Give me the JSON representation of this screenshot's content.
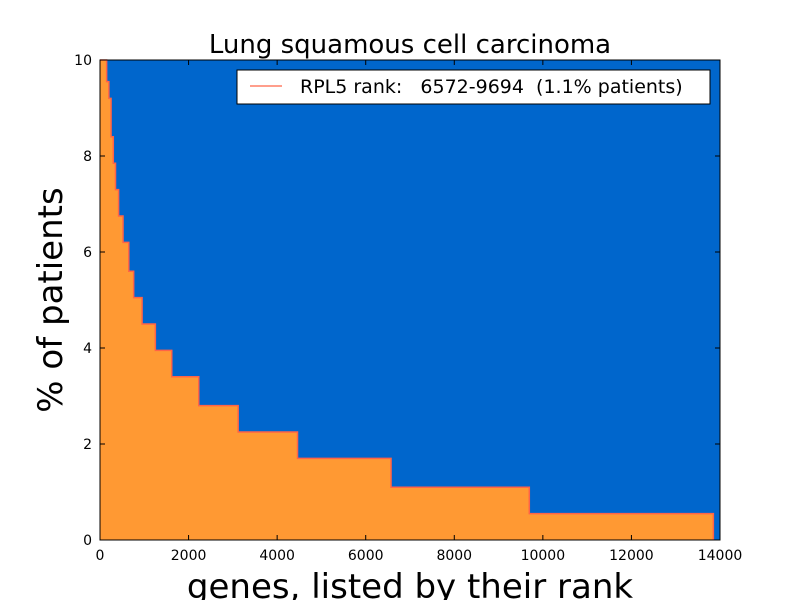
{
  "chart_data": {
    "type": "area",
    "title": "Lung squamous cell carcinoma",
    "xlabel": "genes, listed by their rank",
    "ylabel": "% of patients",
    "xlim": [
      0,
      14000
    ],
    "ylim": [
      0,
      10
    ],
    "x_ticks": [
      0,
      2000,
      4000,
      6000,
      8000,
      10000,
      12000,
      14000
    ],
    "y_ticks": [
      0,
      2,
      4,
      6,
      8,
      10
    ],
    "grid": false,
    "legend": {
      "label": "RPL5 rank:   6572-9694  (1.1% patients)",
      "placement": "top-right",
      "line_color": "#ff6347"
    },
    "colors": {
      "background": "#0066cc",
      "fill": "#ff9933",
      "outline": "#ff6347"
    },
    "series": [
      {
        "steps": [
          {
            "x0": 0,
            "x1": 150,
            "y": 10.0
          },
          {
            "x0": 150,
            "x1": 200,
            "y": 9.55
          },
          {
            "x0": 200,
            "x1": 250,
            "y": 9.2
          },
          {
            "x0": 250,
            "x1": 300,
            "y": 8.4
          },
          {
            "x0": 300,
            "x1": 350,
            "y": 7.85
          },
          {
            "x0": 350,
            "x1": 420,
            "y": 7.3
          },
          {
            "x0": 420,
            "x1": 520,
            "y": 6.75
          },
          {
            "x0": 520,
            "x1": 650,
            "y": 6.2
          },
          {
            "x0": 650,
            "x1": 760,
            "y": 5.6
          },
          {
            "x0": 760,
            "x1": 950,
            "y": 5.05
          },
          {
            "x0": 950,
            "x1": 1250,
            "y": 4.5
          },
          {
            "x0": 1250,
            "x1": 1620,
            "y": 3.95
          },
          {
            "x0": 1620,
            "x1": 2230,
            "y": 3.4
          },
          {
            "x0": 2230,
            "x1": 3120,
            "y": 2.8
          },
          {
            "x0": 3120,
            "x1": 4460,
            "y": 2.25
          },
          {
            "x0": 4460,
            "x1": 6572,
            "y": 1.7
          },
          {
            "x0": 6572,
            "x1": 9694,
            "y": 1.1
          },
          {
            "x0": 9694,
            "x1": 13850,
            "y": 0.55
          }
        ]
      }
    ]
  }
}
